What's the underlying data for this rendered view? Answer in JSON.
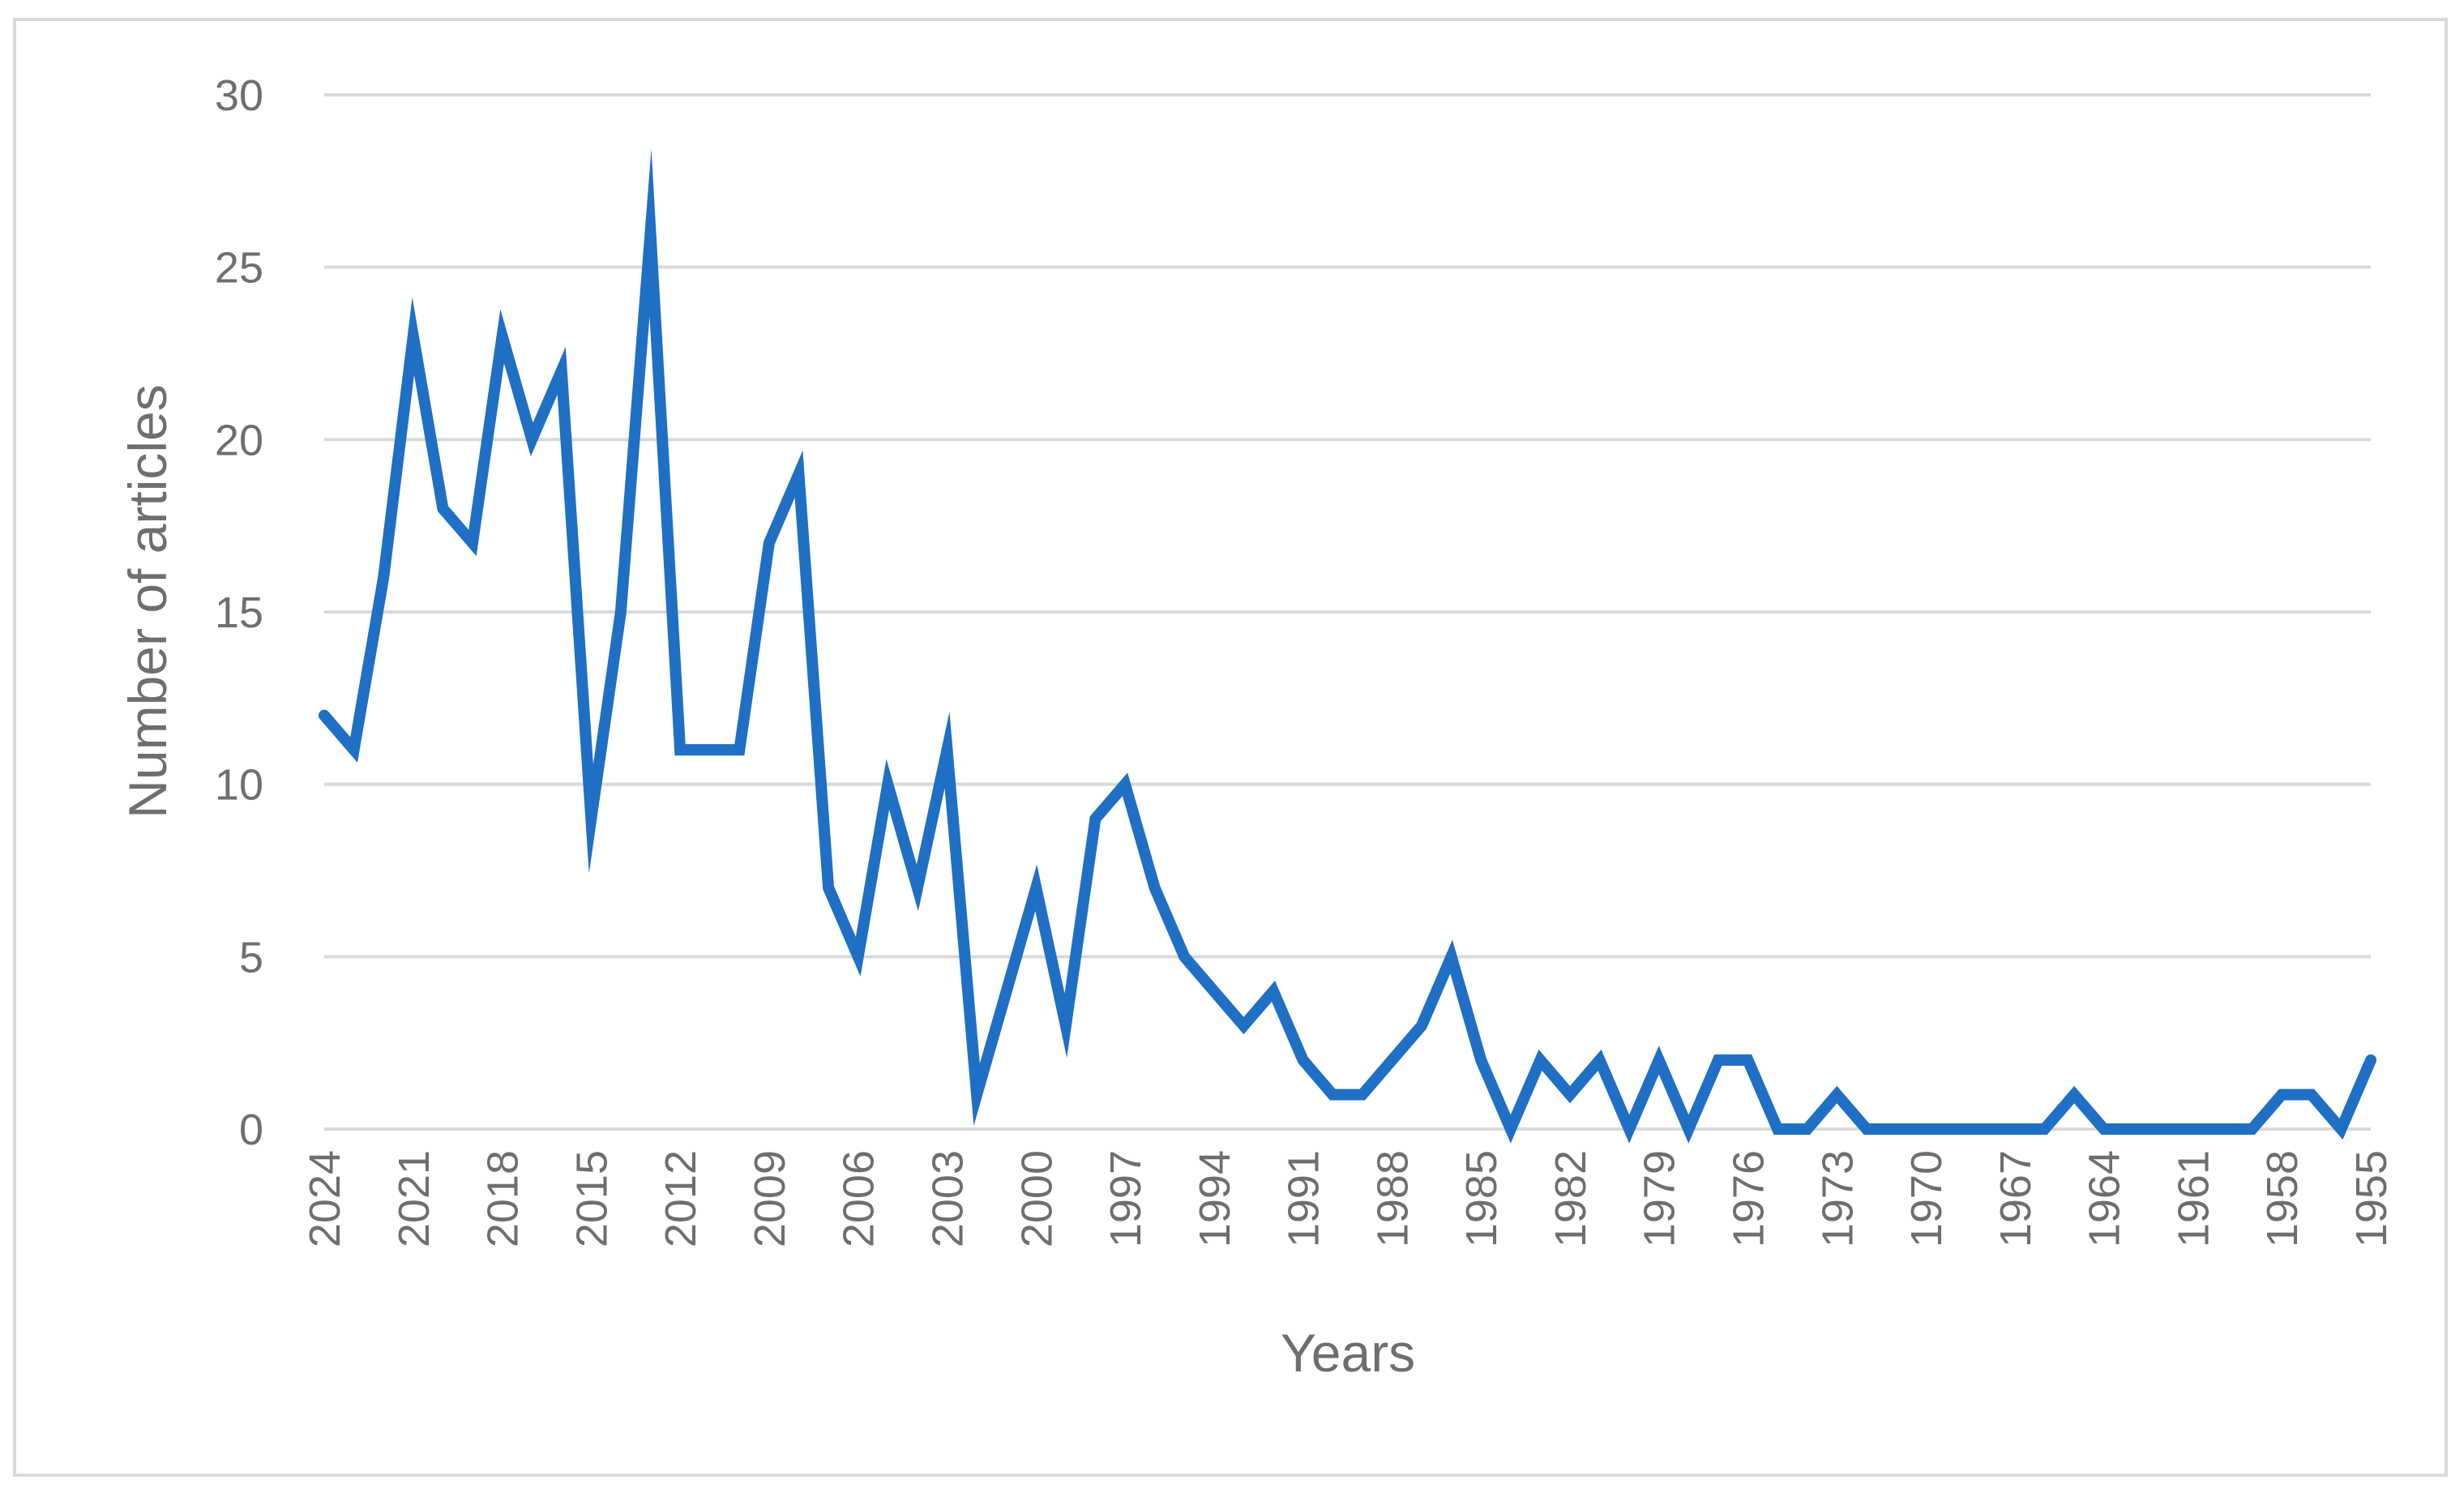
{
  "chart_data": {
    "type": "line",
    "title": "",
    "xlabel": "Years",
    "ylabel": "Number of articles",
    "ylim": [
      0,
      30
    ],
    "yticks": [
      0,
      5,
      10,
      15,
      20,
      25,
      30
    ],
    "grid": true,
    "line_color": "#1f6fc5",
    "grid_color": "#d9d9d9",
    "x": [
      2024,
      2023,
      2022,
      2021,
      2020,
      2019,
      2018,
      2017,
      2016,
      2015,
      2014,
      2013,
      2012,
      2011,
      2010,
      2009,
      2008,
      2007,
      2006,
      2005,
      2004,
      2003,
      2002,
      2001,
      2000,
      1999,
      1998,
      1997,
      1996,
      1995,
      1994,
      1993,
      1992,
      1991,
      1990,
      1989,
      1988,
      1987,
      1986,
      1985,
      1984,
      1983,
      1982,
      1981,
      1980,
      1979,
      1978,
      1977,
      1976,
      1975,
      1974,
      1973,
      1972,
      1971,
      1970,
      1969,
      1968,
      1967,
      1966,
      1965,
      1964,
      1963,
      1962,
      1961,
      1960,
      1959,
      1958,
      1957,
      1956,
      1955
    ],
    "xtick_labels": [
      "2024",
      "2021",
      "2018",
      "2015",
      "2012",
      "2009",
      "2006",
      "2003",
      "2000",
      "1997",
      "1994",
      "1991",
      "1988",
      "1985",
      "1982",
      "1979",
      "1976",
      "1973",
      "1970",
      "1967",
      "1964",
      "1961",
      "1958",
      "1955"
    ],
    "series": [
      {
        "values": [
          12,
          11,
          16,
          23,
          18,
          17,
          23,
          20,
          22,
          9,
          15,
          26,
          11,
          11,
          11,
          17,
          19,
          7,
          5,
          10,
          7,
          11,
          1,
          4,
          7,
          3,
          9,
          10,
          7,
          5,
          4,
          3,
          4,
          2,
          1,
          1,
          2,
          3,
          5,
          2,
          0,
          2,
          1,
          2,
          0,
          2,
          0,
          2,
          2,
          0,
          0,
          1,
          0,
          0,
          0,
          0,
          0,
          0,
          0,
          1,
          0,
          0,
          0,
          0,
          0,
          0,
          1,
          1,
          0,
          2
        ]
      }
    ]
  }
}
